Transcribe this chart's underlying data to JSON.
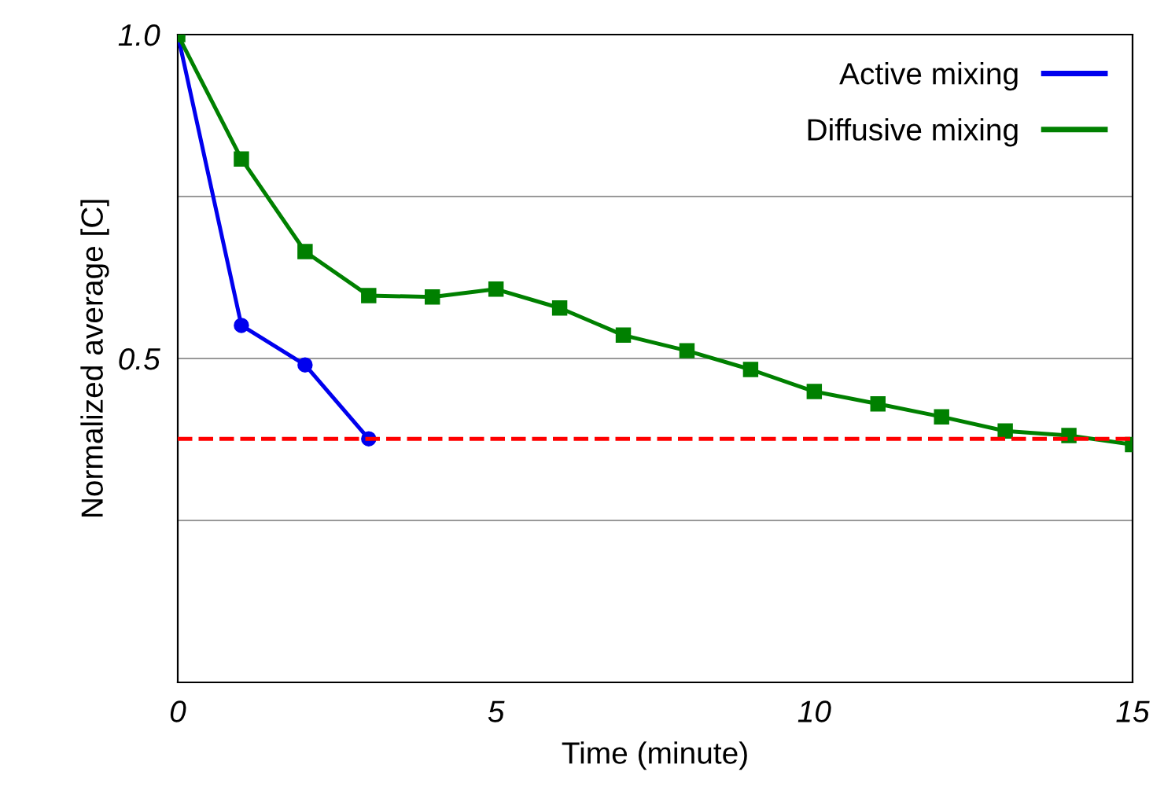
{
  "chart_data": {
    "type": "line",
    "xlabel": "Time (minute)",
    "ylabel": "Normalized average [C]",
    "xlim": [
      0,
      15
    ],
    "xticks": [
      0,
      5,
      10,
      15
    ],
    "ylim": [
      0,
      1
    ],
    "yticks": [
      {
        "value": 0.25,
        "label": null
      },
      {
        "value": 0.5,
        "label": "0.5"
      },
      {
        "value": 0.75,
        "label": null
      },
      {
        "value": 1,
        "label": "1.0"
      }
    ],
    "grid": "y",
    "legend": "top right",
    "series": [
      {
        "name": "Active mixing",
        "color": "#0000ee",
        "marker": "circle",
        "x": [
          0,
          1,
          2,
          3
        ],
        "values": [
          1.0,
          0.551,
          0.49,
          0.376
        ]
      },
      {
        "name": "Diffusive mixing",
        "color": "#008000",
        "marker": "square",
        "x": [
          0,
          1,
          2,
          3,
          4,
          5,
          6,
          7,
          8,
          9,
          10,
          11,
          12,
          13,
          14,
          15
        ],
        "values": [
          1.0,
          0.808,
          0.665,
          0.597,
          0.595,
          0.607,
          0.578,
          0.536,
          0.512,
          0.483,
          0.449,
          0.43,
          0.41,
          0.388,
          0.381,
          0.367
        ]
      }
    ],
    "ref_lines": [
      {
        "axis": "y",
        "value": 0.376,
        "color": "#ff0000",
        "line_style": "dashed"
      }
    ]
  }
}
